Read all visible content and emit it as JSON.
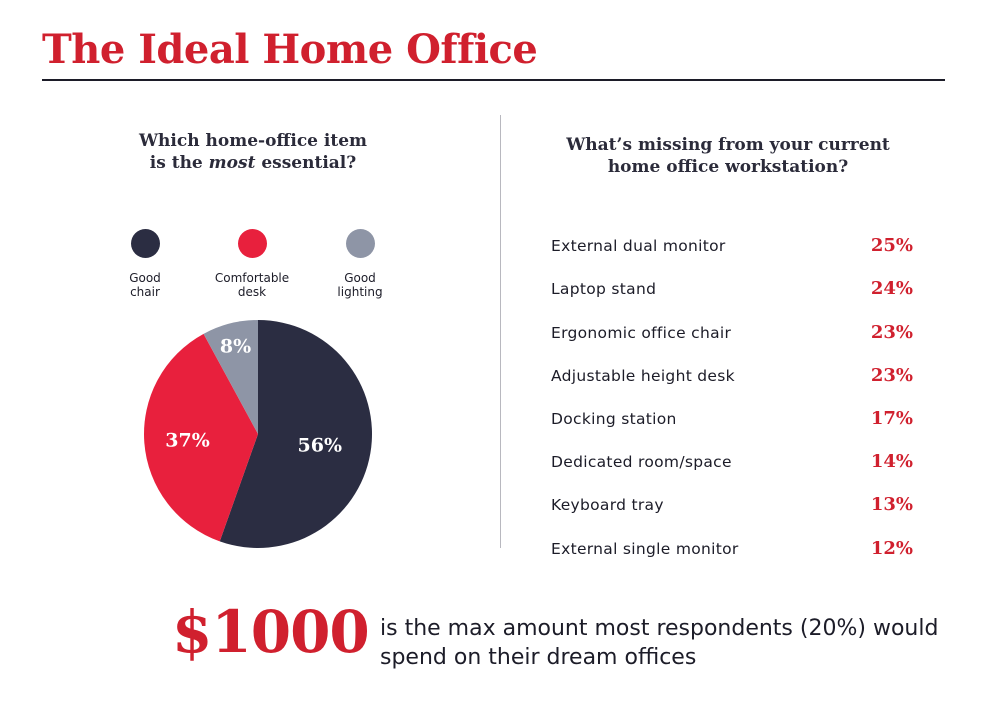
{
  "header": {
    "title": "The Ideal Home Office"
  },
  "pie_section": {
    "question_part1": "Which home-office item",
    "question_part2": "is the ",
    "question_emphasis": "most",
    "question_part3": " essential?"
  },
  "bar_section": {
    "question_line1": "What’s missing from your current",
    "question_line2": "home office workstation?"
  },
  "footer": {
    "amount": "$1000",
    "text": "is the max amount most respondents (20%) would spend on their dream offices"
  },
  "colors": {
    "accent_red": "#e8203d",
    "navy": "#2b2d42",
    "gray": "#8e95a6"
  },
  "chart_data": [
    {
      "type": "pie",
      "categories": [
        "Good chair",
        "Comfortable desk",
        "Good lighting"
      ],
      "legend_labels": [
        "Good\nchair",
        "Comfortable\ndesk",
        "Good\nlighting"
      ],
      "values": [
        56,
        37,
        8
      ],
      "value_labels": [
        "56%",
        "37%",
        "8%"
      ],
      "colors": [
        "#2b2d42",
        "#e8203d",
        "#8e95a6"
      ],
      "legend": "top"
    },
    {
      "type": "table",
      "categories": [
        "External dual monitor",
        "Laptop stand",
        "Ergonomic office chair",
        "Adjustable height desk",
        "Docking station",
        "Dedicated room/space",
        "Keyboard tray",
        "External single monitor"
      ],
      "values": [
        25,
        24,
        23,
        23,
        17,
        14,
        13,
        12
      ],
      "value_labels": [
        "25%",
        "24%",
        "23%",
        "23%",
        "17%",
        "14%",
        "13%",
        "12%"
      ]
    }
  ]
}
